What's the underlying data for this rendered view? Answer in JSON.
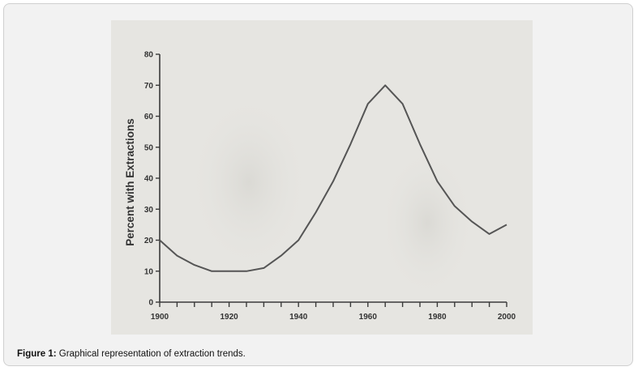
{
  "chart_data": {
    "type": "line",
    "title": "",
    "xlabel": "",
    "ylabel": "Percent with Extractions",
    "xlim": [
      1900,
      2000
    ],
    "ylim": [
      0,
      80
    ],
    "x_ticks": [
      1900,
      1920,
      1940,
      1960,
      1980,
      2000
    ],
    "y_ticks": [
      0,
      10,
      20,
      30,
      40,
      50,
      60,
      70,
      80
    ],
    "x_minor_step": 5,
    "grid": false,
    "line_color": "#555555",
    "series": [
      {
        "x": [
          1900,
          1905,
          1910,
          1915,
          1920,
          1925,
          1930,
          1935,
          1940,
          1945,
          1950,
          1955,
          1960,
          1965,
          1970,
          1975,
          1980,
          1985,
          1990,
          1995,
          2000
        ],
        "values": [
          20,
          15,
          12,
          10,
          10,
          10,
          11,
          15,
          20,
          29,
          39,
          51,
          64,
          70,
          64,
          51,
          39,
          31,
          26,
          22,
          25
        ]
      }
    ]
  },
  "caption": {
    "label": "Figure 1:",
    "text": " Graphical representation of extraction trends."
  }
}
